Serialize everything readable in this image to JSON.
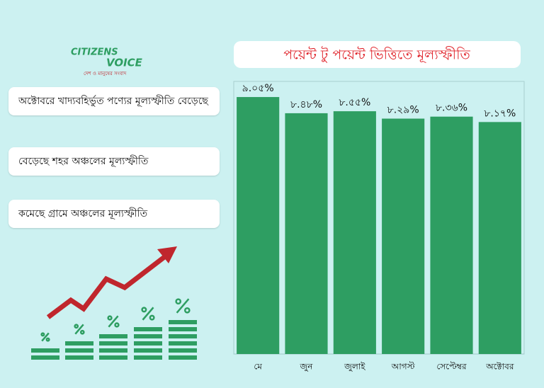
{
  "logo": {
    "name_1": "CITIZENS",
    "name_2": "VOICE",
    "tagline": "দেশ ও মানুষের সংবাদ"
  },
  "notes": [
    "অক্টোবরে খাদ্যবহির্ভুত পণ্যের মূল্যস্ফীতি বেড়েছে",
    "বেড়েছে শহর অঞ্চলের মূল্যস্ফীতি",
    "কমেছে গ্রামে অঞ্চলের মূল্যস্ফীতি"
  ],
  "chart_data": {
    "type": "bar",
    "title": "পয়েন্ট টু পয়েন্ট ভিত্তিতে মূল্যস্ফীতি",
    "categories": [
      "মে",
      "জুন",
      "জুলাই",
      "আগস্ট",
      "সেপ্টেম্বর",
      "অক্টোবর"
    ],
    "values": [
      9.05,
      8.48,
      8.55,
      8.29,
      8.36,
      8.17
    ],
    "value_labels": [
      "৯.০৫%",
      "৮.৪৮%",
      "৮.৫৫%",
      "৮.২৯%",
      "৮.৩৬%",
      "৮.১৭%"
    ],
    "color": "#2e9e62",
    "ylim": [
      0,
      9.6
    ]
  }
}
